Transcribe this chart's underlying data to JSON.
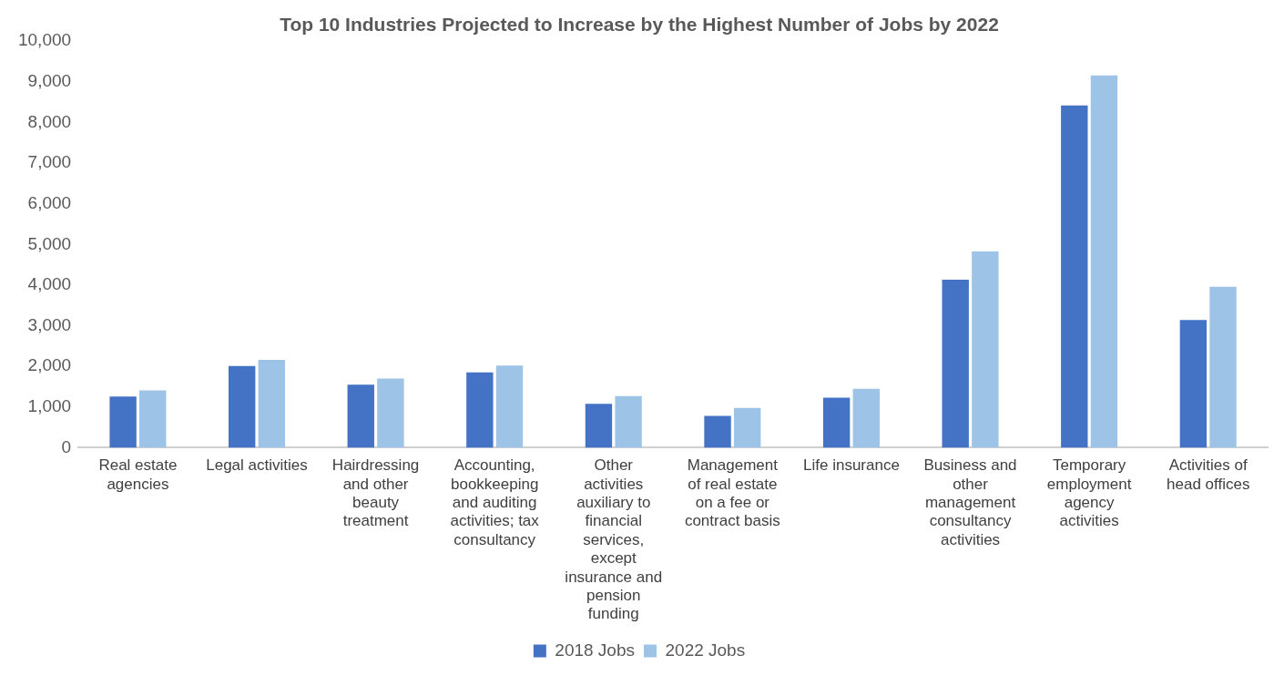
{
  "chart_data": {
    "type": "bar",
    "title": "Top 10 Industries Projected to Increase by the Highest Number of Jobs by 2022",
    "categories": [
      "Real estate agencies",
      "Legal activities",
      "Hairdressing and other beauty treatment",
      "Accounting, bookkeeping and auditing activities; tax consultancy",
      "Other activities auxiliary to financial services, except insurance and pension funding",
      "Management of real estate on a fee or contract basis",
      "Life insurance",
      "Business and other management consultancy activities",
      "Temporary employment agency activities",
      "Activities of head offices"
    ],
    "series": [
      {
        "name": "2018 Jobs",
        "color": "#4472c4",
        "values": [
          1260,
          2010,
          1550,
          1850,
          1080,
          780,
          1230,
          4130,
          8420,
          3140
        ]
      },
      {
        "name": "2022 Jobs",
        "color": "#9dc3e6",
        "values": [
          1410,
          2160,
          1700,
          2020,
          1270,
          980,
          1450,
          4830,
          9160,
          3960
        ]
      }
    ],
    "ylim": [
      0,
      10000
    ],
    "yticks": [
      0,
      {
        "value": 1000,
        "label": "1,000"
      },
      {
        "value": 2000,
        "label": "2,000"
      },
      {
        "value": 3000,
        "label": "3,000"
      },
      {
        "value": 4000,
        "label": "4,000"
      },
      {
        "value": 5000,
        "label": "5,000"
      },
      {
        "value": 6000,
        "label": "6,000"
      },
      {
        "value": 7000,
        "label": "7,000"
      },
      {
        "value": 8000,
        "label": "8,000"
      },
      {
        "value": 9000,
        "label": "9,000"
      },
      {
        "value": 10000,
        "label": "10,000"
      }
    ],
    "grid": false,
    "legend": "bottom"
  }
}
